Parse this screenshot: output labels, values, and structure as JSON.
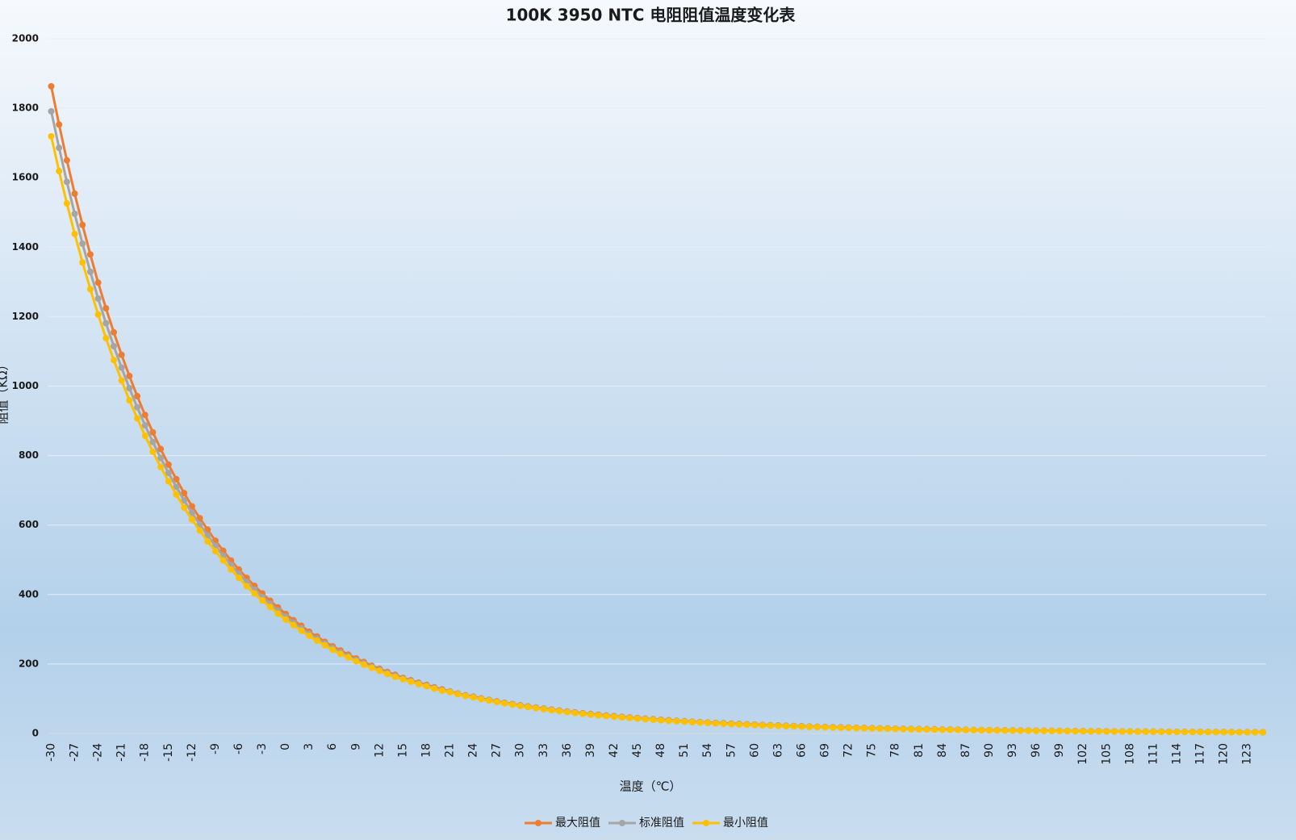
{
  "chart_data": {
    "type": "line",
    "title": "100K 3950 NTC 电阻阻值温度变化表",
    "x_label": "温度（℃）",
    "y_label": "阻值（KΩ）",
    "ylim": [
      0,
      2000
    ],
    "yticks": [
      0,
      200,
      400,
      600,
      800,
      1000,
      1200,
      1400,
      1600,
      1800,
      2000
    ],
    "grid": true,
    "legend": "bottom",
    "categories": [
      -30,
      null,
      null,
      -27,
      null,
      null,
      -24,
      null,
      null,
      -21,
      null,
      null,
      -18,
      null,
      null,
      -15,
      null,
      null,
      -12,
      null,
      null,
      -9,
      null,
      null,
      -6,
      null,
      null,
      -3,
      null,
      null,
      0,
      null,
      null,
      3,
      null,
      null,
      6,
      null,
      null,
      9,
      null,
      null,
      12,
      null,
      null,
      15,
      null,
      null,
      18,
      null,
      null,
      21,
      null,
      null,
      24,
      null,
      null,
      27,
      null,
      null,
      30,
      null,
      null,
      33,
      null,
      null,
      36,
      null,
      null,
      39,
      null,
      null,
      42,
      null,
      null,
      45,
      null,
      null,
      48,
      null,
      null,
      51,
      null,
      null,
      54,
      null,
      null,
      57,
      null,
      null,
      60,
      null,
      null,
      63,
      null,
      null,
      66,
      null,
      null,
      69,
      null,
      null,
      72,
      null,
      null,
      75,
      null,
      null,
      78,
      null,
      null,
      81,
      null,
      null,
      84,
      null,
      null,
      87,
      null,
      null,
      90,
      null,
      null,
      93,
      null,
      null,
      96,
      null,
      null,
      99,
      null,
      null,
      102,
      null,
      null,
      105,
      null,
      null,
      108,
      null,
      null,
      111,
      null,
      null,
      114,
      null,
      null,
      117,
      null,
      null,
      120,
      null,
      null,
      123,
      null,
      null
    ],
    "series": [
      {
        "name": "最大阻值",
        "color": "#ED7D31",
        "values": [
          1863,
          1753,
          1650,
          1554,
          1464,
          1379,
          1298,
          1224,
          1155,
          1090,
          1029,
          971,
          917,
          867,
          819,
          774,
          732,
          692,
          654,
          620,
          587,
          555,
          526,
          498,
          472,
          448,
          425,
          403,
          382,
          363,
          344,
          326,
          310,
          293,
          279,
          264,
          251,
          239,
          227,
          216,
          206,
          195,
          186,
          177,
          169,
          160,
          153,
          146,
          140,
          133,
          127,
          121,
          115,
          110,
          106,
          101,
          96.7,
          92.5,
          88.6,
          84.9,
          81.4,
          78.0,
          74.8,
          71.7,
          68.8,
          66.1,
          63.4,
          60.9,
          58.5,
          56.2,
          54.0,
          51.9,
          49.8,
          47.9,
          46.1,
          44.4,
          42.7,
          41.1,
          39.6,
          38.2,
          36.8,
          35.4,
          34.1,
          32.9,
          31.7,
          30.6,
          29.6,
          28.5,
          27.5,
          26.5,
          25.6,
          24.7,
          23.9,
          23.1,
          22.3,
          21.6,
          20.9,
          20.1,
          19.4,
          18.8,
          18.2,
          17.6,
          17.1,
          16.5,
          16.0,
          15.5,
          14.9,
          14.5,
          14.0,
          13.6,
          13.2,
          12.8,
          12.4,
          12.1,
          11.7,
          11.4,
          11.0,
          10.6,
          10.3,
          10.0,
          9.7,
          9.49,
          9.22,
          8.96,
          8.71,
          8.46,
          8.22,
          7.99,
          7.77,
          7.54,
          7.34,
          7.14,
          6.95,
          6.76,
          6.58,
          6.41,
          6.23,
          6.07,
          5.9,
          5.75,
          5.59,
          5.45,
          5.31,
          5.18,
          5.04,
          4.92,
          4.79,
          4.67,
          4.55,
          4.44,
          4.32,
          4.22,
          4.12,
          4.01,
          3.92,
          3.82
        ]
      },
      {
        "name": "标准阻值",
        "color": "#A5A5A5",
        "values": [
          1791,
          1686,
          1588,
          1496,
          1410,
          1329,
          1252,
          1181,
          1115,
          1053,
          994,
          939,
          887,
          839,
          793,
          750,
          710,
          671,
          635,
          602,
          570,
          540,
          512,
          485,
          460,
          436,
          414,
          393,
          373,
          354,
          336,
          319,
          303,
          287,
          273,
          259,
          246,
          234,
          223,
          212,
          202,
          192,
          183,
          174,
          166,
          158,
          151,
          144,
          138,
          131,
          125,
          120,
          114,
          109,
          105,
          100,
          95.7,
          91.5,
          87.6,
          83.9,
          80.4,
          77.0,
          73.8,
          70.7,
          67.8,
          65.1,
          62.4,
          59.9,
          57.5,
          55.2,
          53.0,
          50.9,
          48.9,
          47.0,
          45.2,
          43.5,
          41.8,
          40.2,
          38.7,
          37.3,
          35.9,
          34.6,
          33.3,
          32.1,
          30.9,
          29.8,
          28.8,
          27.7,
          26.7,
          25.8,
          24.9,
          24.0,
          23.2,
          22.4,
          21.6,
          20.9,
          20.2,
          19.5,
          18.8,
          18.2,
          17.6,
          17.0,
          16.5,
          15.9,
          15.4,
          14.9,
          14.4,
          14.0,
          13.5,
          13.1,
          12.7,
          12.3,
          11.9,
          11.6,
          11.2,
          10.9,
          10.5,
          10.2,
          9.9,
          9.6,
          9.3,
          9.07,
          8.81,
          8.55,
          8.31,
          8.07,
          7.84,
          7.61,
          7.4,
          7.18,
          6.98,
          6.79,
          6.6,
          6.42,
          6.25,
          6.08,
          5.91,
          5.75,
          5.59,
          5.44,
          5.29,
          5.15,
          5.02,
          4.89,
          4.76,
          4.64,
          4.52,
          4.4,
          4.29,
          4.18,
          4.07,
          3.97,
          3.87,
          3.77,
          3.68,
          3.59
        ]
      },
      {
        "name": "最小阻值",
        "color": "#FFC000",
        "values": [
          1719,
          1619,
          1526,
          1438,
          1356,
          1279,
          1206,
          1138,
          1075,
          1016,
          959,
          907,
          857,
          811,
          767,
          726,
          688,
          650,
          616,
          584,
          553,
          525,
          498,
          472,
          448,
          424,
          403,
          383,
          364,
          345,
          328,
          312,
          296,
          281,
          267,
          254,
          241,
          229,
          219,
          208,
          198,
          189,
          180,
          171,
          163,
          156,
          149,
          142,
          136,
          129,
          123,
          119,
          113,
          108,
          104,
          99,
          94.7,
          90.5,
          86.6,
          82.9,
          79.4,
          76.0,
          72.8,
          69.7,
          66.8,
          64.1,
          61.4,
          58.9,
          56.5,
          54.2,
          52.0,
          49.9,
          48.0,
          46.1,
          44.3,
          42.6,
          40.9,
          39.3,
          37.8,
          36.4,
          35.0,
          33.8,
          32.5,
          31.3,
          30.1,
          29.0,
          28.0,
          26.9,
          25.9,
          25.1,
          24.2,
          23.3,
          22.5,
          21.7,
          20.9,
          20.2,
          19.5,
          18.9,
          18.2,
          17.6,
          17.0,
          16.4,
          15.9,
          15.3,
          14.8,
          14.3,
          13.9,
          13.5,
          13.0,
          12.6,
          12.2,
          11.8,
          11.4,
          11.1,
          10.7,
          10.4,
          10.0,
          9.8,
          9.5,
          9.2,
          8.9,
          8.65,
          8.4,
          8.14,
          7.91,
          7.68,
          7.46,
          7.23,
          7.03,
          6.82,
          6.62,
          6.44,
          6.25,
          6.08,
          5.92,
          5.75,
          5.59,
          5.43,
          5.28,
          5.13,
          4.99,
          4.85,
          4.73,
          4.6,
          4.48,
          4.36,
          4.25,
          4.13,
          4.03,
          3.92,
          3.82,
          3.72,
          3.62,
          3.53,
          3.44,
          3.36
        ]
      }
    ]
  }
}
